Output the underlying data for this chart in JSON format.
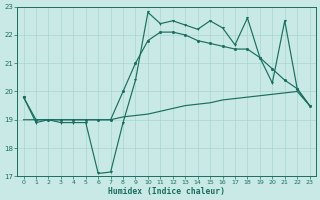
{
  "x": [
    0,
    1,
    2,
    3,
    4,
    5,
    6,
    7,
    8,
    9,
    10,
    11,
    12,
    13,
    14,
    15,
    16,
    17,
    18,
    19,
    20,
    21,
    22,
    23
  ],
  "line_jagged": [
    19.8,
    18.9,
    19.0,
    18.9,
    18.9,
    18.9,
    17.1,
    17.15,
    18.9,
    20.4,
    22.8,
    22.4,
    22.5,
    22.35,
    22.2,
    22.5,
    22.25,
    21.65,
    22.6,
    21.2,
    20.3,
    22.5,
    20.1,
    19.5
  ],
  "line_diag": [
    19.8,
    19.0,
    19.0,
    19.0,
    19.0,
    19.0,
    19.0,
    19.0,
    20.0,
    21.0,
    21.8,
    22.1,
    22.1,
    22.0,
    21.8,
    21.7,
    21.6,
    21.5,
    21.5,
    21.2,
    20.8,
    20.4,
    20.1,
    19.5
  ],
  "line_flat": [
    19.0,
    19.0,
    19.0,
    19.0,
    19.0,
    19.0,
    19.0,
    19.0,
    19.1,
    19.15,
    19.2,
    19.3,
    19.4,
    19.5,
    19.55,
    19.6,
    19.7,
    19.75,
    19.8,
    19.85,
    19.9,
    19.95,
    20.0,
    19.5
  ],
  "bg_color": "#c9e9e6",
  "grid_color": "#a8d4d0",
  "line_color": "#1a6e60",
  "xlabel": "Humidex (Indice chaleur)",
  "ylim": [
    17,
    23
  ],
  "xlim_min": -0.5,
  "xlim_max": 23.5,
  "yticks": [
    17,
    18,
    19,
    20,
    21,
    22,
    23
  ],
  "xticks": [
    0,
    1,
    2,
    3,
    4,
    5,
    6,
    7,
    8,
    9,
    10,
    11,
    12,
    13,
    14,
    15,
    16,
    17,
    18,
    19,
    20,
    21,
    22,
    23
  ],
  "tick_fontsize": 4.5,
  "label_fontsize": 5.8,
  "linewidth": 0.85,
  "markersize": 2.2
}
